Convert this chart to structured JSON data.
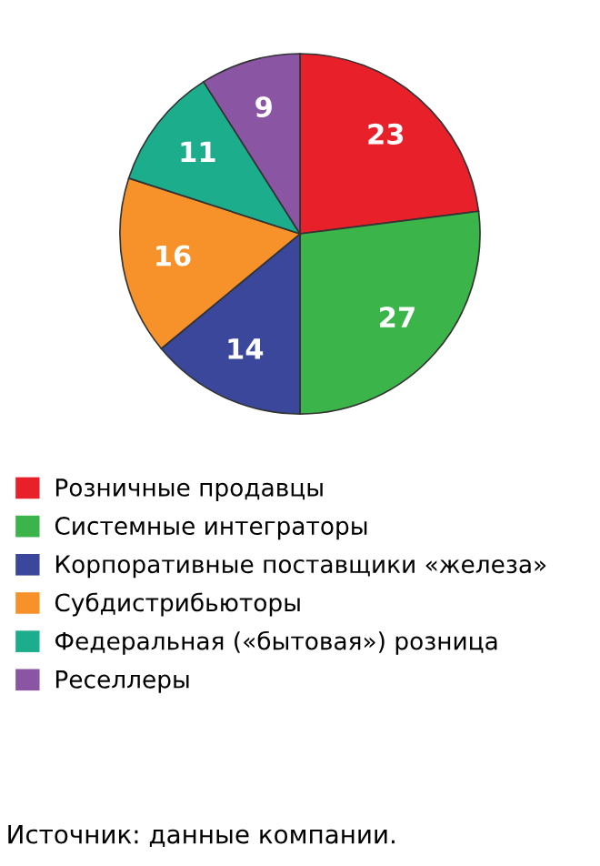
{
  "chart_data": {
    "type": "pie",
    "categories": [
      "Розничные продавцы",
      "Системные интеграторы",
      "Корпоративные поставщики «железа»",
      "Субдистрибьюторы",
      "Федеральная («бытовая») розница",
      "Реселлеры"
    ],
    "values": [
      23,
      27,
      14,
      16,
      11,
      9
    ],
    "colors": [
      "#e8202a",
      "#3bb54a",
      "#3a479b",
      "#f7922a",
      "#1cad8c",
      "#8a55a3"
    ],
    "data_labels": true,
    "legend": "bottom",
    "annotations": [
      "Источник: данные компании."
    ]
  }
}
